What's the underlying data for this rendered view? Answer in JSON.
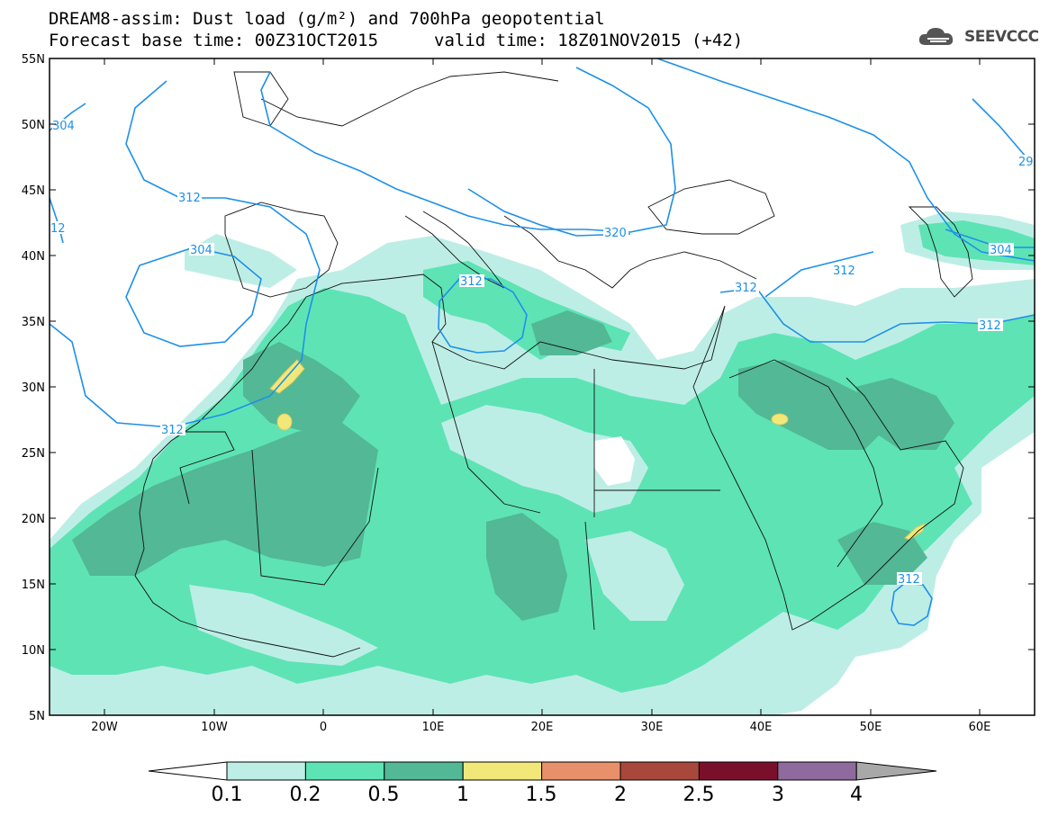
{
  "header": {
    "title_line1": "DREAM8-assim: Dust load (g/m²) and 700hPa geopotential",
    "title_line2": "Forecast base time: 00Z31OCT2015",
    "valid_time": "valid time: 18Z01NOV2015 (+42)",
    "logo_text": "SEEVCCC",
    "logo_icon": "cloud-icon"
  },
  "map": {
    "lon_range": [
      -25,
      65
    ],
    "lat_range": [
      5,
      55
    ],
    "lat_labels": [
      "55N",
      "50N",
      "45N",
      "40N",
      "35N",
      "30N",
      "25N",
      "20N",
      "15N",
      "10N",
      "5N"
    ],
    "lon_labels": [
      "20W",
      "10W",
      "0",
      "10E",
      "20E",
      "30E",
      "40E",
      "50E",
      "60E"
    ],
    "contour_labels": [
      "304",
      "312",
      "304",
      "312",
      "312",
      "320",
      "312",
      "312",
      "304",
      "312",
      "312",
      "29",
      "12"
    ],
    "contour_color": "#1e90e8"
  },
  "colorbar": {
    "labels": [
      "0.1",
      "0.2",
      "0.5",
      "1",
      "1.5",
      "2",
      "2.5",
      "3",
      "4"
    ],
    "colors": [
      "#ffffff",
      "#bdeee6",
      "#5ee3b5",
      "#52b895",
      "#f2e87a",
      "#e8906a",
      "#a8483c",
      "#7a0f2c",
      "#8e6a9e",
      "#a8a8a8"
    ]
  }
}
